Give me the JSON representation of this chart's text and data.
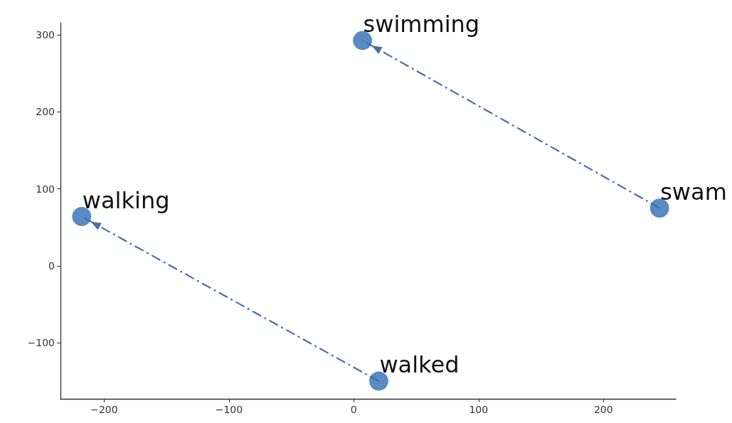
{
  "chart_data": {
    "type": "scatter",
    "xlim": [
      -235,
      258
    ],
    "ylim": [
      -173,
      316
    ],
    "xticks": [
      -200,
      -100,
      0,
      100,
      200
    ],
    "yticks": [
      -100,
      0,
      100,
      200,
      300
    ],
    "grid": false,
    "marker": "circle",
    "series": [
      {
        "color": "#2f6db3",
        "x": [
          7,
          245,
          -218,
          20
        ],
        "values": [
          293,
          75,
          64,
          -150
        ]
      },
      {
        "type": "line",
        "color": "#4a6fa5",
        "x": [
          245,
          7
        ],
        "values": [
          75,
          293
        ],
        "line_style": "dashed",
        "marker": "none"
      },
      {
        "type": "line",
        "color": "#4a6fa5",
        "x": [
          20,
          -218
        ],
        "values": [
          -150,
          64
        ],
        "line_style": "dashed",
        "marker": "none"
      }
    ],
    "annotations": [
      {
        "text": "swimming",
        "x": 7,
        "y": 293
      },
      {
        "text": "swam",
        "x": 245,
        "y": 75
      },
      {
        "text": "walking",
        "x": -218,
        "y": 64
      },
      {
        "text": "walked",
        "x": 20,
        "y": -150
      }
    ]
  }
}
